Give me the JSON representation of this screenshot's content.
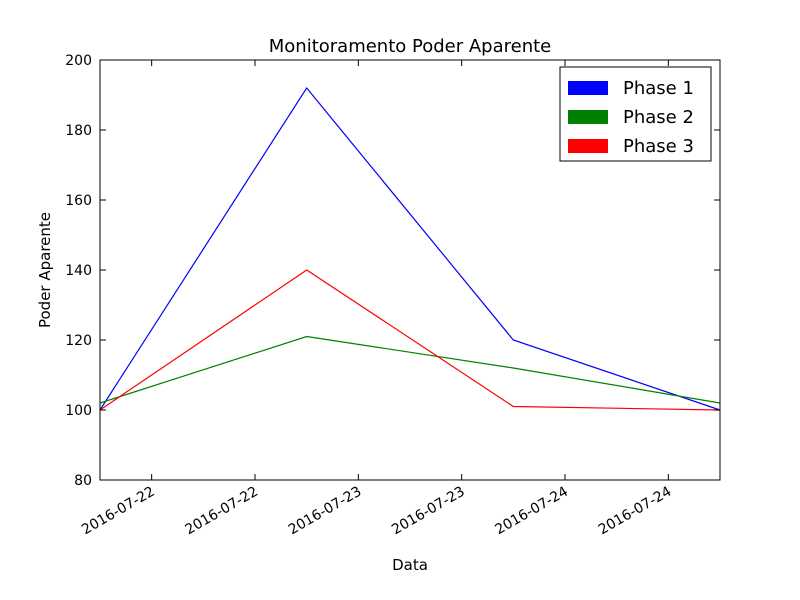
{
  "chart_data": {
    "type": "line",
    "title": "Monitoramento Poder Aparente",
    "xlabel": "Data",
    "ylabel": "Poder Aparente",
    "ylim": [
      80,
      200
    ],
    "yticks": [
      80,
      100,
      120,
      140,
      160,
      180,
      200
    ],
    "xlim": [
      0,
      6
    ],
    "xticks": [
      {
        "x": 0.5,
        "label": "2016-07-22"
      },
      {
        "x": 1.5,
        "label": "2016-07-22"
      },
      {
        "x": 2.5,
        "label": "2016-07-23"
      },
      {
        "x": 3.5,
        "label": "2016-07-23"
      },
      {
        "x": 4.5,
        "label": "2016-07-24"
      },
      {
        "x": 5.5,
        "label": "2016-07-24"
      }
    ],
    "x": [
      0,
      2,
      4,
      6
    ],
    "series": [
      {
        "name": "Phase 1",
        "color": "#0000ff",
        "values": [
          100,
          192,
          120,
          100
        ]
      },
      {
        "name": "Phase 2",
        "color": "#008000",
        "values": [
          102,
          121,
          112,
          102
        ]
      },
      {
        "name": "Phase 3",
        "color": "#ff0000",
        "values": [
          100,
          140,
          101,
          100
        ]
      }
    ],
    "legend": {
      "position": "top-right"
    },
    "grid": false
  }
}
